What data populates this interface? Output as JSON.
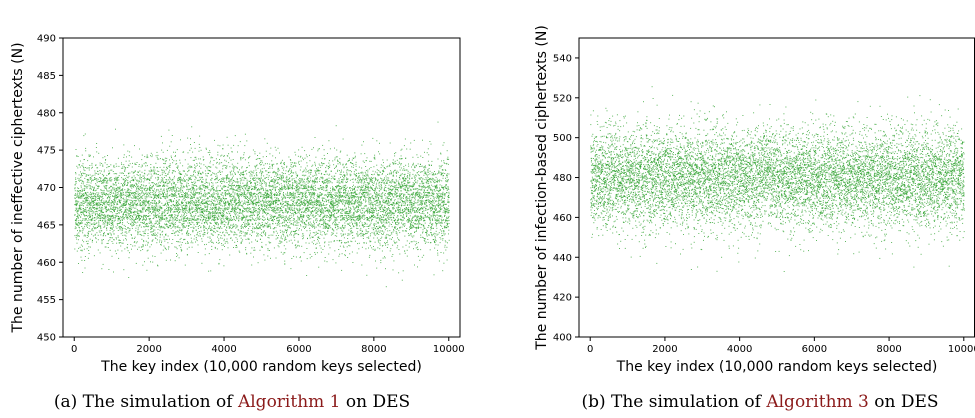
{
  "chart_data": [
    {
      "type": "scatter",
      "xlabel": "The key index (10,000 random keys selected)",
      "ylabel": "The number of ineffective ciphertexts (N)",
      "xlim": [
        -300,
        10300
      ],
      "ylim": [
        450,
        490
      ],
      "xticks": [
        0,
        2000,
        4000,
        6000,
        8000,
        10000
      ],
      "yticks": [
        450,
        455,
        460,
        465,
        470,
        475,
        480,
        485,
        490
      ],
      "point_color": "#2ca02c",
      "n_points": 10000,
      "distribution": {
        "mean": 468,
        "std": 3.0,
        "min": 456,
        "max": 479
      },
      "caption": {
        "prefix": "(a) The simulation of ",
        "ref": "Algorithm 1",
        "suffix": " on DES"
      }
    },
    {
      "type": "scatter",
      "xlabel": "The key index (10,000 random keys selected)",
      "ylabel": "The number of infection-based ciphertexts (N)",
      "xlim": [
        -300,
        10300
      ],
      "ylim": [
        400,
        550
      ],
      "xticks": [
        0,
        2000,
        4000,
        6000,
        8000,
        10000
      ],
      "yticks": [
        400,
        420,
        440,
        460,
        480,
        500,
        520,
        540
      ],
      "point_color": "#2ca02c",
      "n_points": 10000,
      "distribution": {
        "mean": 480,
        "std": 12.5,
        "min": 432,
        "max": 528
      },
      "caption": {
        "prefix": "(b) The simulation of ",
        "ref": "Algorithm 3",
        "suffix": " on DES"
      }
    }
  ]
}
